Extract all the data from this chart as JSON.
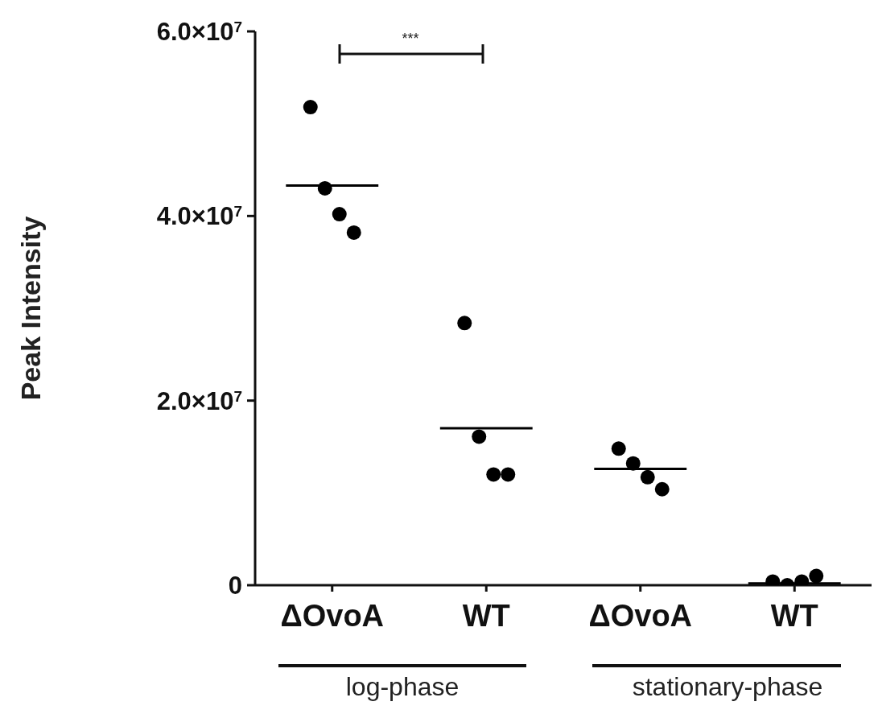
{
  "chart_data": {
    "type": "scatter",
    "ylabel": "Peak Intensity",
    "categories": [
      "ΔOvoA",
      "WT",
      "ΔOvoA",
      "WT"
    ],
    "series": [
      {
        "color": "#000000",
        "marker": "circle",
        "values": [
          51800000,
          28400000,
          14800000,
          400000
        ]
      },
      {
        "color": "#000000",
        "marker": "circle",
        "values": [
          43000000,
          16100000,
          13200000,
          0
        ]
      },
      {
        "color": "#000000",
        "marker": "circle",
        "values": [
          40200000,
          12000000,
          11700000,
          400000
        ]
      },
      {
        "color": "#000000",
        "marker": "circle",
        "values": [
          38200000,
          12000000,
          10400000,
          1000000
        ]
      }
    ],
    "ref_lines": [
      {
        "axis": "y",
        "value": 43300000,
        "color": "#000000"
      },
      {
        "axis": "y",
        "value": 17000000,
        "color": "#000000"
      },
      {
        "axis": "y",
        "value": 12600000,
        "color": "#000000"
      },
      {
        "axis": "y",
        "value": 200000,
        "color": "#000000"
      }
    ],
    "ylim": [
      0,
      60000000
    ],
    "yticks": [
      0,
      {
        "value": 20000000,
        "label": "2.0×10$^{7}$"
      },
      {
        "value": 40000000,
        "label": "4.0×10$^{7}$"
      },
      {
        "value": 60000000,
        "label": "6.0×10$^{7}$"
      }
    ],
    "annotations": [
      "***",
      "log-phase",
      "stationary-phase"
    ]
  }
}
